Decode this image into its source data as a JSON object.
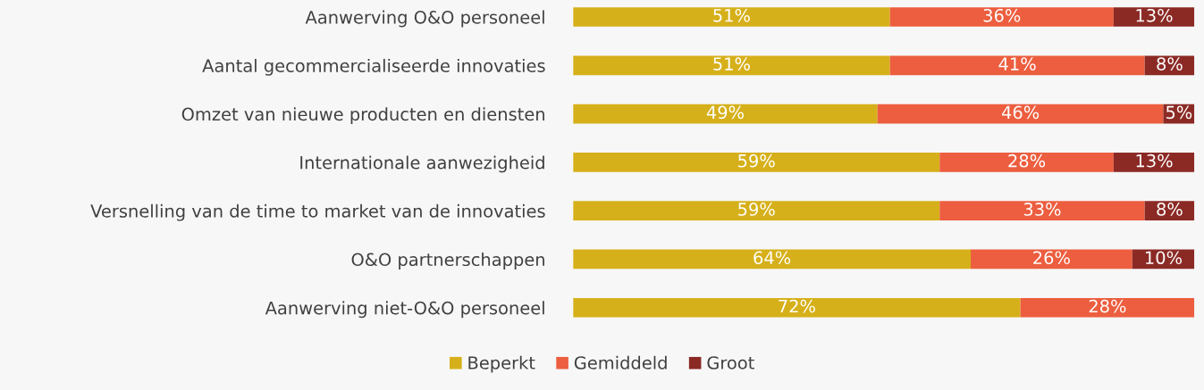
{
  "chart_data": {
    "type": "bar",
    "orientation": "horizontal",
    "stacked": true,
    "categories": [
      "Aanwerving O&O personeel",
      "Aantal gecommercialiseerde innovaties",
      "Omzet van nieuwe producten en diensten",
      "Internationale aanwezigheid",
      "Versnelling van de time to market van de innovaties",
      "O&O partnerschappen",
      "Aanwerving niet-O&O personeel"
    ],
    "series": [
      {
        "name": "Beperkt",
        "color": "#d6b01a",
        "values": [
          51,
          51,
          49,
          59,
          59,
          64,
          72
        ],
        "value_labels": [
          "51%",
          "51%",
          "49%",
          "59%",
          "59%",
          "64%",
          "72%"
        ]
      },
      {
        "name": "Gemiddeld",
        "color": "#ec5e3f",
        "values": [
          36,
          41,
          46,
          28,
          33,
          26,
          28
        ],
        "value_labels": [
          "36%",
          "41%",
          "46%",
          "28%",
          "33%",
          "26%",
          "28%"
        ]
      },
      {
        "name": "Groot",
        "color": "#8b2a25",
        "values": [
          13,
          8,
          5,
          13,
          8,
          10,
          null
        ],
        "value_labels": [
          "13%",
          "8%",
          "5%",
          "13%",
          "8%",
          "10%",
          null
        ]
      }
    ],
    "xlim": [
      0,
      100
    ],
    "tick_labels": "y",
    "grid": false,
    "legend": "bottom"
  }
}
